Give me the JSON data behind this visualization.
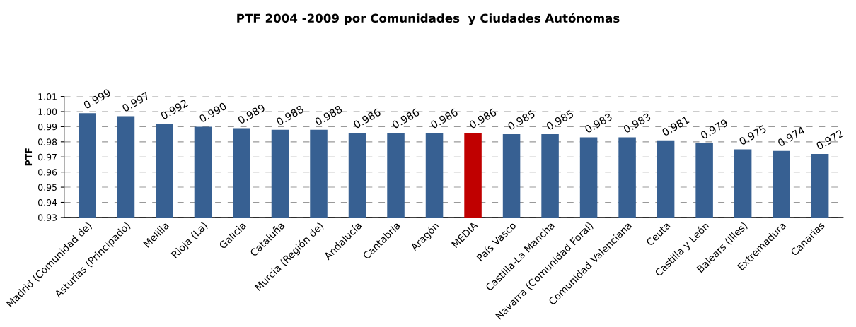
{
  "chart_data": {
    "type": "bar",
    "title": "PTF 2004 -2009 por Comunidades  y Ciudades Autónomas",
    "ylabel": "PTF",
    "categories": [
      "Madrid (Comunidad de)",
      "Asturias (Principado)",
      "Melilla",
      "Rioja (La)",
      "Galicia",
      "Cataluña",
      "Murcia (Región de)",
      "Andalucía",
      "Cantabria",
      "Aragón",
      "MEDIA",
      "País Vasco",
      "Castilla-La Mancha",
      "Navarra (Comunidad Foral)",
      "Comunidad Valenciana",
      "Ceuta",
      "Castilla y León",
      "Balears (Illes)",
      "Extremadura",
      "Canarias"
    ],
    "values": [
      0.999,
      0.997,
      0.992,
      0.99,
      0.989,
      0.988,
      0.988,
      0.986,
      0.986,
      0.986,
      0.986,
      0.985,
      0.985,
      0.983,
      0.983,
      0.981,
      0.979,
      0.975,
      0.974,
      0.972
    ],
    "value_labels": [
      "0.999",
      "0.997",
      "0.992",
      "0.990",
      "0.989",
      "0.988",
      "0.988",
      "0.986",
      "0.986",
      "0.986",
      "0.986",
      "0.985",
      "0.985",
      "0.983",
      "0.983",
      "0.981",
      "0.979",
      "0.975",
      "0.974",
      "0.972"
    ],
    "colors": [
      "#376092",
      "#376092",
      "#376092",
      "#376092",
      "#376092",
      "#376092",
      "#376092",
      "#376092",
      "#376092",
      "#376092",
      "#c00000",
      "#376092",
      "#376092",
      "#376092",
      "#376092",
      "#376092",
      "#376092",
      "#376092",
      "#376092",
      "#376092"
    ],
    "ylim": [
      0.93,
      1.01
    ],
    "yticks": [
      {
        "value": 0.93,
        "label": "0.93"
      },
      {
        "value": 0.94,
        "label": "0.94"
      },
      {
        "value": 0.95,
        "label": "0.95"
      },
      {
        "value": 0.96,
        "label": "0.96"
      },
      {
        "value": 0.97,
        "label": "0.97"
      },
      {
        "value": 0.98,
        "label": "0.98"
      },
      {
        "value": 0.99,
        "label": "0.99"
      },
      {
        "value": 1.0,
        "label": "1.00"
      },
      {
        "value": 1.01,
        "label": "1.01"
      }
    ],
    "grid": "y"
  }
}
